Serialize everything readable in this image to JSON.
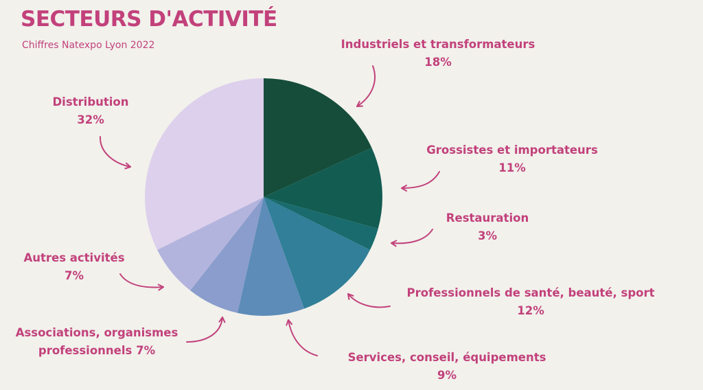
{
  "colors": {
    "accent": "#c2417b",
    "background": "#f2f1ec",
    "slice_colors": [
      "#154d3a",
      "#135c52",
      "#196b6d",
      "#317f98",
      "#5d8cb8",
      "#8a9dcc",
      "#b3b4dd",
      "#ddd0ec"
    ]
  },
  "chart_data": {
    "type": "pie",
    "title": "SECTEURS D'ACTIVITÉ",
    "subtitle": "Chiffres Natexpo Lyon 2022",
    "unit": "%",
    "slices": [
      {
        "label": "Industriels et transformateurs",
        "value": 18,
        "display": "18%"
      },
      {
        "label": "Grossistes et importateurs",
        "value": 11,
        "display": "11%"
      },
      {
        "label": "Restauration",
        "value": 3,
        "display": "3%"
      },
      {
        "label": "Professionnels de santé, beauté, sport",
        "value": 12,
        "display": "12%"
      },
      {
        "label": "Services, conseil, équipements",
        "value": 9,
        "display": "9%"
      },
      {
        "label": "Associations, organismes professionnels",
        "value": 7,
        "display": "7%",
        "line1": "Associations, organismes",
        "line2": "professionnels 7%"
      },
      {
        "label": "Autres activités",
        "value": 7,
        "display": "7%"
      },
      {
        "label": "Distribution",
        "value": 32,
        "display": "32%"
      }
    ],
    "legend": "none (callout labels with arrows)"
  }
}
